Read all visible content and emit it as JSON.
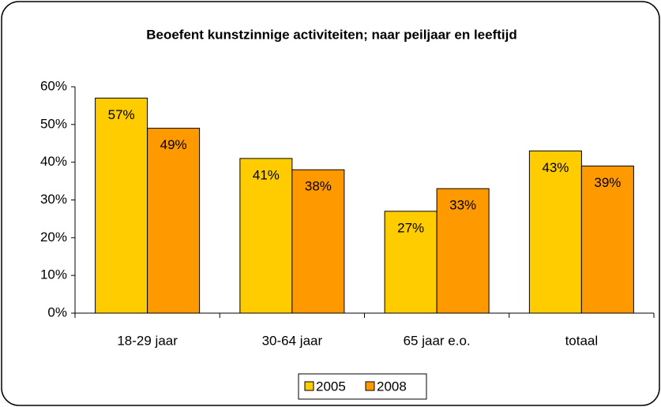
{
  "chart_data": {
    "type": "bar",
    "title": "Beoefent kunstzinnige activiteiten; naar peiljaar en leeftijd",
    "categories": [
      "18-29 jaar",
      "30-64 jaar",
      "65 jaar e.o.",
      "totaal"
    ],
    "series": [
      {
        "name": "2005",
        "color": "#ffcc00",
        "values": [
          57,
          41,
          27,
          43
        ],
        "value_labels": [
          "57%",
          "41%",
          "27%",
          "43%"
        ]
      },
      {
        "name": "2008",
        "color": "#ff9900",
        "values": [
          49,
          38,
          33,
          39
        ],
        "value_labels": [
          "49%",
          "38%",
          "33%",
          "39%"
        ]
      }
    ],
    "ylim": [
      0,
      60
    ],
    "yticks": [
      {
        "value": 0,
        "label": "0%"
      },
      {
        "value": 10,
        "label": "10%"
      },
      {
        "value": 20,
        "label": "20%"
      },
      {
        "value": 30,
        "label": "30%"
      },
      {
        "value": 40,
        "label": "40%"
      },
      {
        "value": 50,
        "label": "50%"
      },
      {
        "value": 60,
        "label": "60%"
      }
    ],
    "legend": "bottom"
  }
}
